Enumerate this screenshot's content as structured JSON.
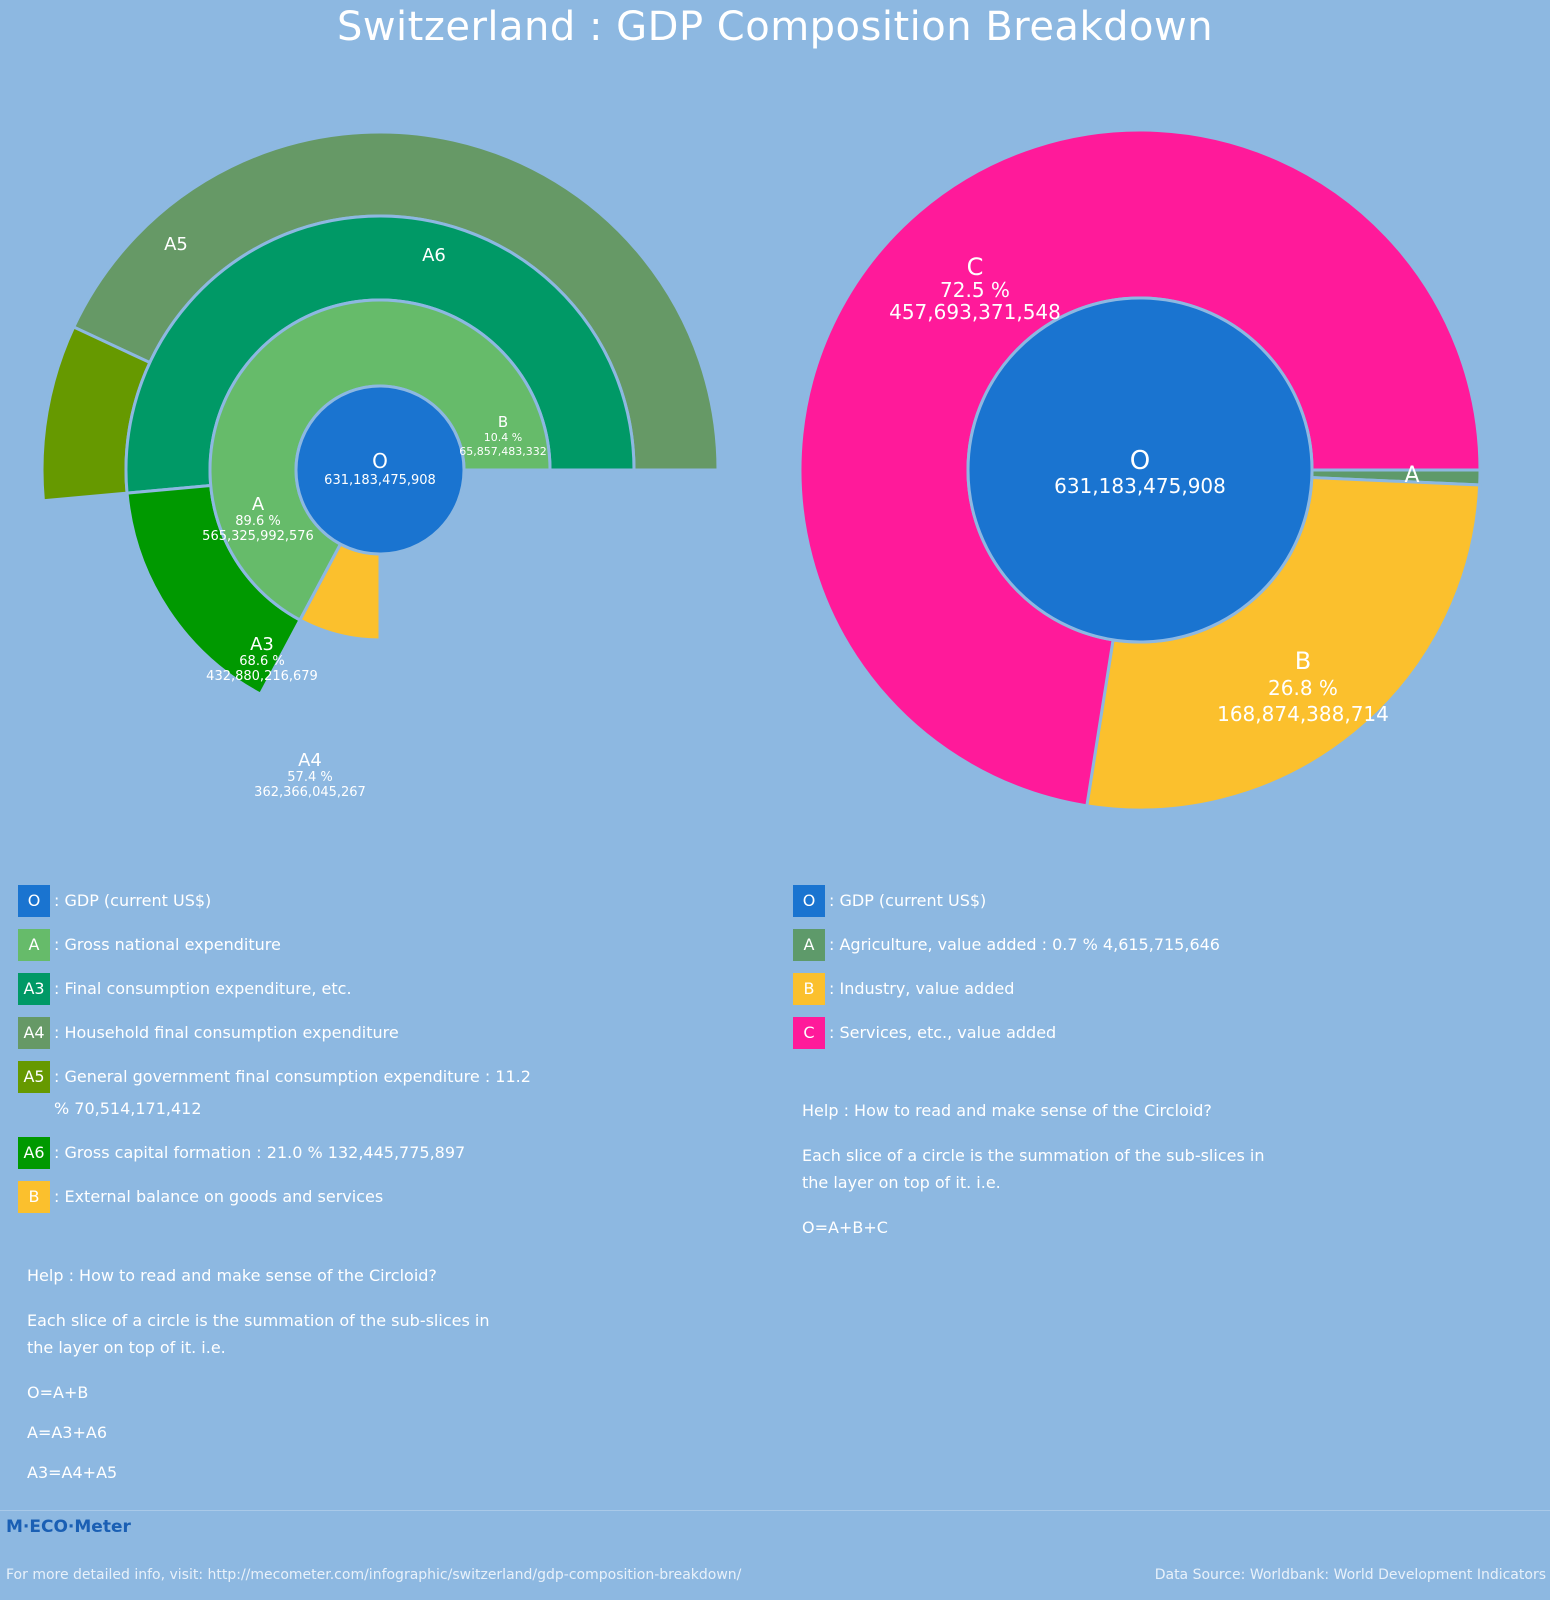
{
  "page": {
    "title": "Switzerland : GDP Composition Breakdown",
    "logo": "M·ECO·Meter",
    "footer_left": "For more detailed info, visit: http://mecometer.com/infographic/switzerland/gdp-composition-breakdown/",
    "footer_right": "Data Source: Worldbank: World Development Indicators"
  },
  "colors": {
    "background": "#8db8e1",
    "O": "#1a74d0",
    "A_left": "#66bb6a",
    "A3": "#009966",
    "A4": "#669966",
    "A5": "#669900",
    "A6": "#009900",
    "B": "#fbc02d",
    "A_right": "#5e9a6a",
    "C": "#ff1a9a",
    "ring_border": "#8db8e1"
  },
  "chart_data": [
    {
      "type": "circloid",
      "name": "expenditure",
      "total": {
        "label": "O",
        "value": "631,183,475,908"
      },
      "slices": [
        {
          "label": "A",
          "percent": 89.6,
          "percent_text": "89.6 %",
          "value_text": "565,325,992,576",
          "level": 1,
          "parent": "O"
        },
        {
          "label": "B",
          "percent": 10.4,
          "percent_text": "10.4 %",
          "value_text": "65,857,483,332",
          "level": 1,
          "parent": "O"
        },
        {
          "label": "A3",
          "percent": 68.6,
          "percent_text": "68.6 %",
          "value_text": "432,880,216,679",
          "level": 2,
          "parent": "A"
        },
        {
          "label": "A6",
          "percent": 21.0,
          "percent_text": "",
          "value_text": "",
          "level": 2,
          "parent": "A"
        },
        {
          "label": "A4",
          "percent": 57.4,
          "percent_text": "57.4 %",
          "value_text": "362,366,045,267",
          "level": 3,
          "parent": "A3"
        },
        {
          "label": "A5",
          "percent": 11.2,
          "percent_text": "",
          "value_text": "",
          "level": 3,
          "parent": "A3"
        }
      ]
    },
    {
      "type": "circloid",
      "name": "value_added",
      "total": {
        "label": "O",
        "value": "631,183,475,908"
      },
      "slices": [
        {
          "label": "A",
          "percent": 0.7,
          "percent_text": "",
          "value_text": "",
          "level": 1,
          "parent": "O"
        },
        {
          "label": "B",
          "percent": 26.8,
          "percent_text": "26.8 %",
          "value_text": "168,874,388,714",
          "level": 1,
          "parent": "O"
        },
        {
          "label": "C",
          "percent": 72.5,
          "percent_text": "72.5 %",
          "value_text": "457,693,371,548",
          "level": 1,
          "parent": "O"
        }
      ]
    }
  ],
  "legend_left": [
    {
      "key": "O",
      "text": ": GDP (current US$)",
      "color": "#1a74d0"
    },
    {
      "key": "A",
      "text": ": Gross national expenditure",
      "color": "#66bb6a"
    },
    {
      "key": "A3",
      "text": ": Final consumption expenditure, etc.",
      "color": "#009966"
    },
    {
      "key": "A4",
      "text": ": Household final consumption expenditure",
      "color": "#669966"
    },
    {
      "key": "A5",
      "text": ": General government final consumption expenditure : 11.2 %  70,514,171,412",
      "color": "#669900"
    },
    {
      "key": "A6",
      "text": ": Gross capital formation : 21.0 %  132,445,775,897",
      "color": "#009900"
    },
    {
      "key": "B",
      "text": ": External balance on goods and services",
      "color": "#fbc02d"
    }
  ],
  "legend_right": [
    {
      "key": "O",
      "text": ": GDP (current US$)",
      "color": "#1a74d0"
    },
    {
      "key": "A",
      "text": ": Agriculture, value added : 0.7 %  4,615,715,646",
      "color": "#5e9a6a"
    },
    {
      "key": "B",
      "text": ": Industry, value added",
      "color": "#fbc02d"
    },
    {
      "key": "C",
      "text": ": Services, etc., value added",
      "color": "#ff1a9a"
    }
  ],
  "help_left": {
    "heading": "Help : How to read and make sense of the Circloid?",
    "body": "Each slice of a circle is the summation of the sub-slices in the layer on top of it. i.e.",
    "equations": [
      "O=A+B",
      "A=A3+A6",
      "A3=A4+A5"
    ]
  },
  "help_right": {
    "heading": "Help : How to read and make sense of the Circloid?",
    "body": "Each slice of a circle is the summation of the sub-slices in the layer on top of it. i.e.",
    "equations": [
      "O=A+B+C"
    ]
  }
}
